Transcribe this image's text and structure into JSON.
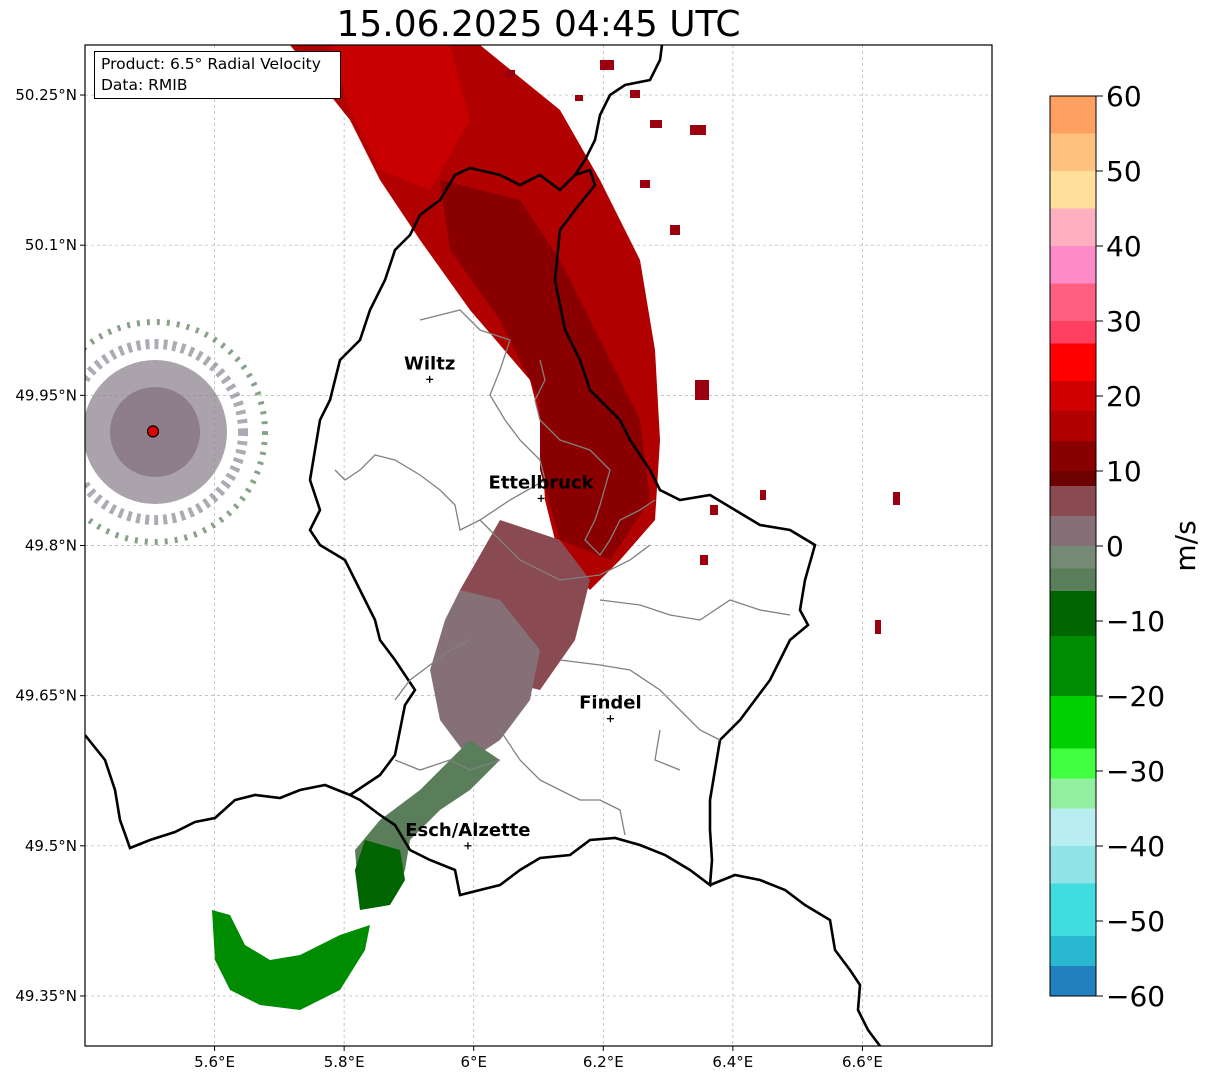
{
  "title": "15.06.2025 04:45 UTC",
  "info": {
    "product": "Product: 6.5° Radial Velocity",
    "source": "Data: RMIB"
  },
  "axes": {
    "lon_min": 5.4,
    "lon_max": 6.8,
    "lat_min": 49.3,
    "lat_max": 50.3,
    "lon_ticks": [
      {
        "value": 5.6,
        "label": "5.6°E"
      },
      {
        "value": 5.8,
        "label": "5.8°E"
      },
      {
        "value": 6.0,
        "label": "6°E"
      },
      {
        "value": 6.2,
        "label": "6.2°E"
      },
      {
        "value": 6.4,
        "label": "6.4°E"
      },
      {
        "value": 6.6,
        "label": "6.6°E"
      }
    ],
    "lat_ticks": [
      {
        "value": 50.25,
        "label": "50.25°N"
      },
      {
        "value": 50.1,
        "label": "50.1°N"
      },
      {
        "value": 49.95,
        "label": "49.95°N"
      },
      {
        "value": 49.8,
        "label": "49.8°N"
      },
      {
        "value": 49.65,
        "label": "49.65°N"
      },
      {
        "value": 49.5,
        "label": "49.5°N"
      },
      {
        "value": 49.35,
        "label": "49.35°N"
      }
    ],
    "grid": true
  },
  "cities": [
    {
      "name": "Wiltz",
      "lon": 5.932,
      "lat": 49.966
    },
    {
      "name": "Ettelbruck",
      "lon": 6.104,
      "lat": 49.847
    },
    {
      "name": "Findel",
      "lon": 6.211,
      "lat": 49.627
    },
    {
      "name": "Esch/Alzette",
      "lon": 5.991,
      "lat": 49.5
    }
  ],
  "radar_site": {
    "lon": 5.505,
    "lat": 49.914,
    "color": "#e00000"
  },
  "colorbar": {
    "label": "m/s",
    "min": -60,
    "max": 60,
    "ticks": [
      {
        "value": 60,
        "label": "60"
      },
      {
        "value": 50,
        "label": "50"
      },
      {
        "value": 40,
        "label": "40"
      },
      {
        "value": 30,
        "label": "30"
      },
      {
        "value": 20,
        "label": "20"
      },
      {
        "value": 10,
        "label": "10"
      },
      {
        "value": 0,
        "label": "0"
      },
      {
        "value": -10,
        "label": "−10"
      },
      {
        "value": -20,
        "label": "−20"
      },
      {
        "value": -30,
        "label": "−30"
      },
      {
        "value": -40,
        "label": "−40"
      },
      {
        "value": -50,
        "label": "−50"
      },
      {
        "value": -60,
        "label": "−60"
      }
    ],
    "stops": [
      {
        "lo": 55,
        "hi": 60,
        "color": "#ffa060"
      },
      {
        "lo": 50,
        "hi": 55,
        "color": "#ffc080"
      },
      {
        "lo": 45,
        "hi": 50,
        "color": "#ffdf9a"
      },
      {
        "lo": 40,
        "hi": 45,
        "color": "#ffb0c0"
      },
      {
        "lo": 35,
        "hi": 40,
        "color": "#ff8ac8"
      },
      {
        "lo": 30,
        "hi": 35,
        "color": "#ff6080"
      },
      {
        "lo": 27,
        "hi": 30,
        "color": "#ff4060"
      },
      {
        "lo": 22,
        "hi": 27,
        "color": "#ff0000"
      },
      {
        "lo": 18,
        "hi": 22,
        "color": "#d00000"
      },
      {
        "lo": 14,
        "hi": 18,
        "color": "#b00000"
      },
      {
        "lo": 10,
        "hi": 14,
        "color": "#8a0000"
      },
      {
        "lo": 8,
        "hi": 10,
        "color": "#6e0000"
      },
      {
        "lo": 4,
        "hi": 8,
        "color": "#8a4a52"
      },
      {
        "lo": 0,
        "hi": 4,
        "color": "#867077"
      },
      {
        "lo": -3,
        "hi": 0,
        "color": "#758a75"
      },
      {
        "lo": -6,
        "hi": -3,
        "color": "#5a7d5a"
      },
      {
        "lo": -12,
        "hi": -6,
        "color": "#006400"
      },
      {
        "lo": -20,
        "hi": -12,
        "color": "#008c00"
      },
      {
        "lo": -27,
        "hi": -20,
        "color": "#00d000"
      },
      {
        "lo": -31,
        "hi": -27,
        "color": "#40ff40"
      },
      {
        "lo": -35,
        "hi": -31,
        "color": "#90f0a0"
      },
      {
        "lo": -40,
        "hi": -35,
        "color": "#b8eef0"
      },
      {
        "lo": -45,
        "hi": -40,
        "color": "#90e4e8"
      },
      {
        "lo": -52,
        "hi": -45,
        "color": "#40dce0"
      },
      {
        "lo": -56,
        "hi": -52,
        "color": "#28b8d0"
      },
      {
        "lo": -60,
        "hi": -56,
        "color": "#2080c0"
      }
    ]
  }
}
